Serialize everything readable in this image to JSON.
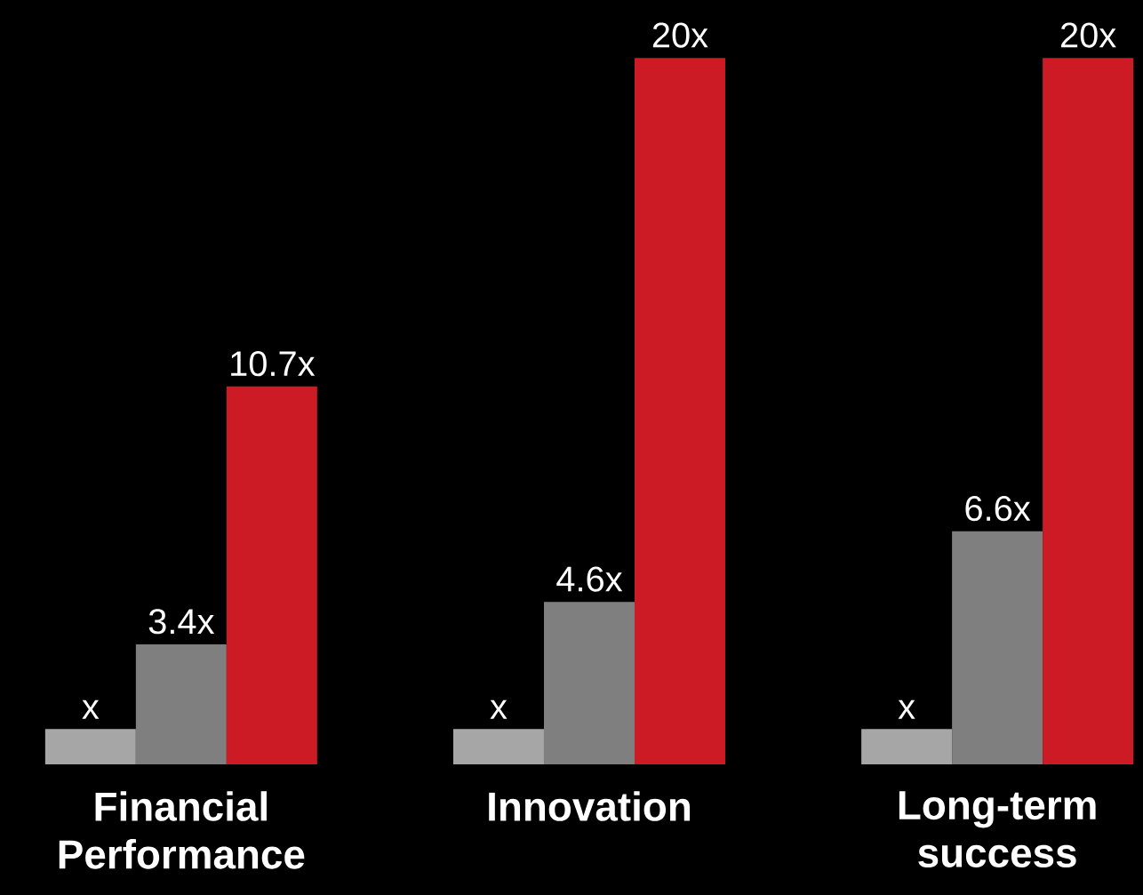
{
  "chart_data": {
    "type": "bar",
    "categories": [
      "Financial Performance",
      "Innovation",
      "Long-term success"
    ],
    "series": [
      {
        "color": "#a6a6a6",
        "values": [
          1,
          1,
          1
        ],
        "value_labels": [
          "x",
          "x",
          "x"
        ]
      },
      {
        "color": "#7f7f7f",
        "values": [
          3.4,
          4.6,
          6.6
        ],
        "value_labels": [
          "3.4x",
          "4.6x",
          "6.6x"
        ]
      },
      {
        "color": "#cc1b24",
        "values": [
          10.7,
          20,
          20
        ],
        "value_labels": [
          "10.7x",
          "20x",
          "20x"
        ]
      }
    ]
  }
}
